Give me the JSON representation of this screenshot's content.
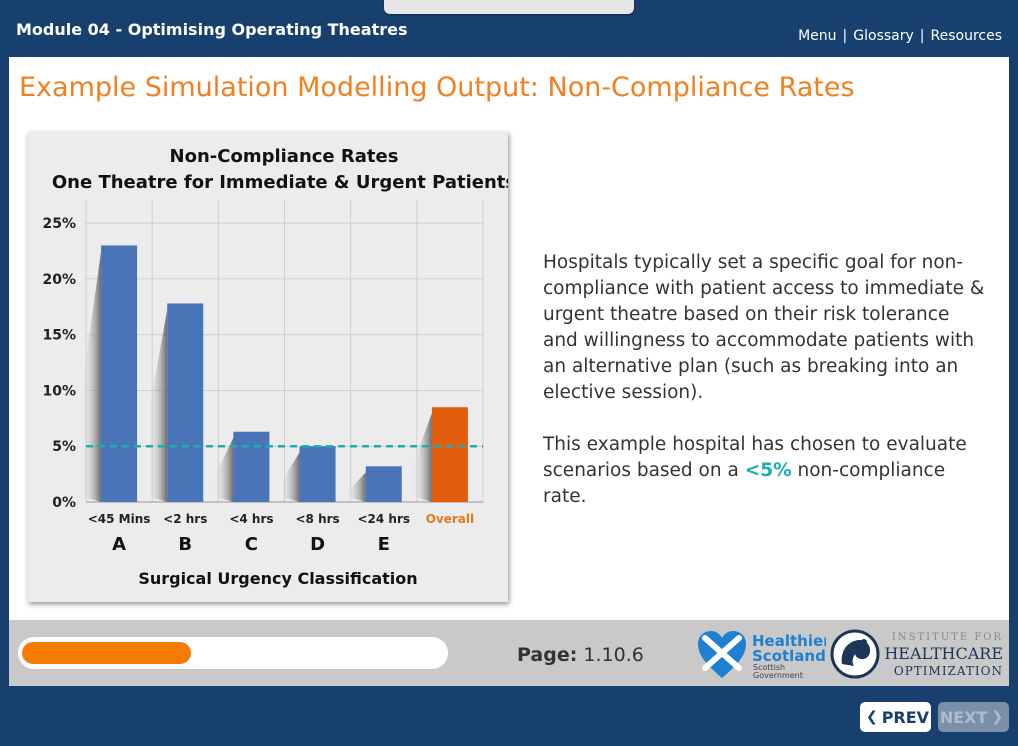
{
  "header": {
    "module_title": "Module 04 - Optimising Operating Theatres",
    "nav": [
      {
        "label": "Menu"
      },
      {
        "label": "Glossary"
      },
      {
        "label": "Resources"
      }
    ],
    "separator": "|"
  },
  "slide": {
    "title": "Example Simulation Modelling Output: Non-Compliance Rates",
    "paragraph1": "Hospitals typically set a specific goal for non-compliance with patient access to immediate & urgent theatre based on their risk tolerance and willingness to accommodate patients with an alternative plan (such as breaking into an elective session).",
    "paragraph2_prefix": "This example hospital has chosen to evaluate scenarios based on a ",
    "paragraph2_highlight": "<5%",
    "paragraph2_suffix": " non-compliance rate."
  },
  "chart_data": {
    "type": "bar",
    "title": "Non-Compliance Rates",
    "subtitle": "One Theatre for Immediate & Urgent Patients",
    "categories": [
      "<45 Mins",
      "<2 hrs",
      "<4 hrs",
      "<8 hrs",
      "<24 hrs",
      "Overall"
    ],
    "category_letters": [
      "A",
      "B",
      "C",
      "D",
      "E",
      ""
    ],
    "values": [
      23,
      17.8,
      6.3,
      5,
      3.2,
      8.5
    ],
    "bar_colors": [
      "#4a74b8",
      "#4a74b8",
      "#4a74b8",
      "#4a74b8",
      "#4a74b8",
      "#e35e0c"
    ],
    "label_colors": [
      "#222222",
      "#222222",
      "#222222",
      "#222222",
      "#222222",
      "#e07b1a"
    ],
    "yticks": [
      "0%",
      "5%",
      "10%",
      "15%",
      "20%",
      "25%"
    ],
    "ylim": [
      0,
      26
    ],
    "target_line": 5,
    "target_color": "#1ab0b0",
    "xlabel": "Surgical Urgency Classification",
    "ylabel": "",
    "grid": true
  },
  "footer": {
    "progress": 0.4,
    "page_label": "Page:",
    "page_number": "1.10.6",
    "logo_hs": {
      "line1": "Healthier",
      "line2": "Scotland",
      "line3": "Scottish",
      "line4": "Government"
    },
    "logo_ihco": {
      "line1": "INSTITUTE FOR",
      "line2": "HEALTHCARE",
      "line3": "OPTIMIZATION"
    }
  },
  "nav_buttons": {
    "prev": "PREV",
    "next": "NEXT"
  },
  "colors": {
    "brand_navy": "#17406e",
    "accent_orange": "#f08020",
    "accent_teal": "#1ab0b0"
  }
}
